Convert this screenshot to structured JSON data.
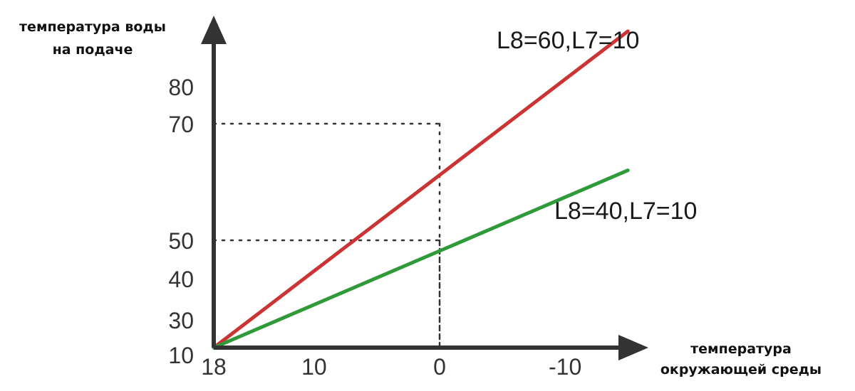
{
  "chart_data": {
    "type": "line",
    "ylabel_lines": [
      "температура воды",
      "на подаче"
    ],
    "xlabel_lines": [
      "температура",
      "окружающей среды"
    ],
    "x_reversed": true,
    "xlim": [
      18,
      -15
    ],
    "ylim": [
      10,
      100
    ],
    "x_ticks": [
      "18",
      "10",
      "0",
      "-10"
    ],
    "y_ticks": [
      "10",
      "30",
      "40",
      "50",
      "70",
      "80"
    ],
    "reference_lines": [
      {
        "x": 0,
        "y": 70
      },
      {
        "x": 0,
        "y": 50
      }
    ],
    "series": [
      {
        "name": "L8=60,L7=10",
        "color": "#cc3333",
        "x": [
          18,
          -15
        ],
        "y": [
          10,
          95
        ]
      },
      {
        "name": "L8=40,L7=10",
        "color": "#2e9a3a",
        "x": [
          18,
          -15
        ],
        "y": [
          10,
          62
        ]
      }
    ],
    "grid": false,
    "legend": "none"
  }
}
